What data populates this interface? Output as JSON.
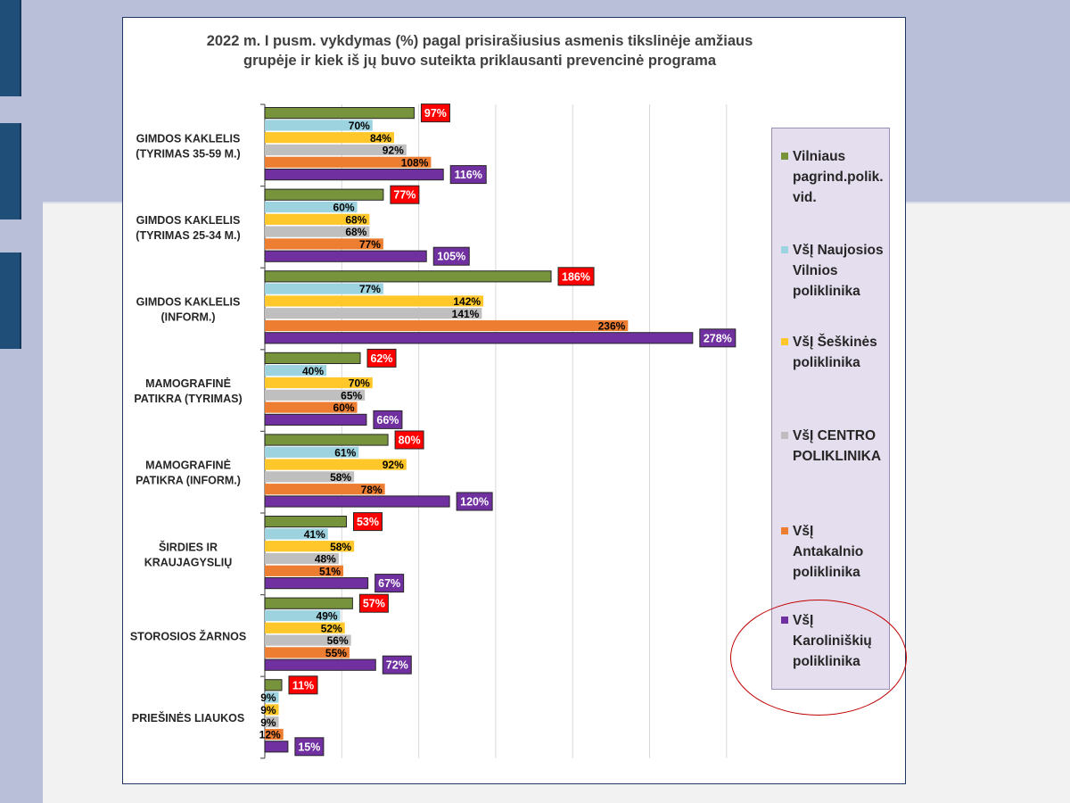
{
  "chart_data": {
    "type": "bar",
    "orientation": "horizontal",
    "title": "2022 m. I pusm. vykdymas (%) pagal prisirašiusius asmenis tikslinėje amžiaus grupėje ir kiek iš jų buvo suteikta priklausanti prevencinė programa",
    "title_lines": [
      "2022 m. I pusm. vykdymas (%) pagal prisirašiusius asmenis tikslinėje amžiaus",
      "grupėje ir kiek iš jų buvo suteikta priklausanti prevencinė programa"
    ],
    "xlim": [
      0,
      300
    ],
    "grid": true,
    "legend_position": "right",
    "categories": [
      [
        "GIMDOS KAKLELIS",
        "(TYRIMAS 35-59 M.)"
      ],
      [
        "GIMDOS KAKLELIS",
        "(TYRIMAS 25-34 M.)"
      ],
      [
        "GIMDOS KAKLELIS",
        "(INFORM.)"
      ],
      [
        "MAMOGRAFINĖ",
        "PATIKRA (TYRIMAS)"
      ],
      [
        "MAMOGRAFINĖ",
        "PATIKRA (INFORM.)"
      ],
      [
        "ŠIRDIES IR",
        "KRAUJAGYSLIŲ"
      ],
      [
        "STOROSIOS ŽARNOS"
      ],
      [
        "PRIEŠINĖS  LIAUKOS"
      ]
    ],
    "series": [
      {
        "name": "Vilniaus pagrind.polik. vid.",
        "legend_lines": [
          "Vilniaus",
          "pagrind.polik.",
          "vid."
        ],
        "color": "#77933c",
        "label_style": "red-box",
        "values": [
          97,
          77,
          186,
          62,
          80,
          53,
          57,
          11
        ]
      },
      {
        "name": "VšĮ Naujosios Vilnios poliklinika",
        "legend_lines": [
          "VšĮ Naujosios",
          "Vilnios",
          "poliklinika"
        ],
        "color": "#9dd3df",
        "label_style": "plain",
        "values": [
          70,
          60,
          77,
          40,
          61,
          41,
          49,
          9
        ]
      },
      {
        "name": "VšĮ Šeškinės poliklinika",
        "legend_lines": [
          "VšĮ Šeškinės",
          "poliklinika"
        ],
        "color": "#ffc729",
        "label_style": "plain",
        "values": [
          84,
          68,
          142,
          70,
          92,
          58,
          52,
          9
        ]
      },
      {
        "name": "VšĮ CENTRO POLIKLINIKA",
        "legend_lines": [
          "VšĮ CENTRO",
          "POLIKLINIKA"
        ],
        "color": "#bfbfbf",
        "label_style": "plain",
        "values": [
          92,
          68,
          141,
          65,
          58,
          48,
          56,
          9
        ]
      },
      {
        "name": "VšĮ Antakalnio poliklinika",
        "legend_lines": [
          "VšĮ",
          "Antakalnio",
          "poliklinika"
        ],
        "color": "#ed7d31",
        "label_style": "plain",
        "values": [
          108,
          77,
          236,
          60,
          78,
          51,
          55,
          12
        ]
      },
      {
        "name": "VšĮ Karoliniškių poliklinika",
        "legend_lines": [
          "VšĮ",
          "Karoliniškių",
          "poliklinika"
        ],
        "color": "#7030a0",
        "label_style": "purple-box",
        "values": [
          116,
          105,
          278,
          66,
          120,
          67,
          72,
          15
        ]
      }
    ],
    "value_suffix": "%"
  },
  "colors": {
    "label_red_box": "#ff0000",
    "label_purple_box": "#7030a0",
    "highlight_ellipse": "#c00000"
  }
}
